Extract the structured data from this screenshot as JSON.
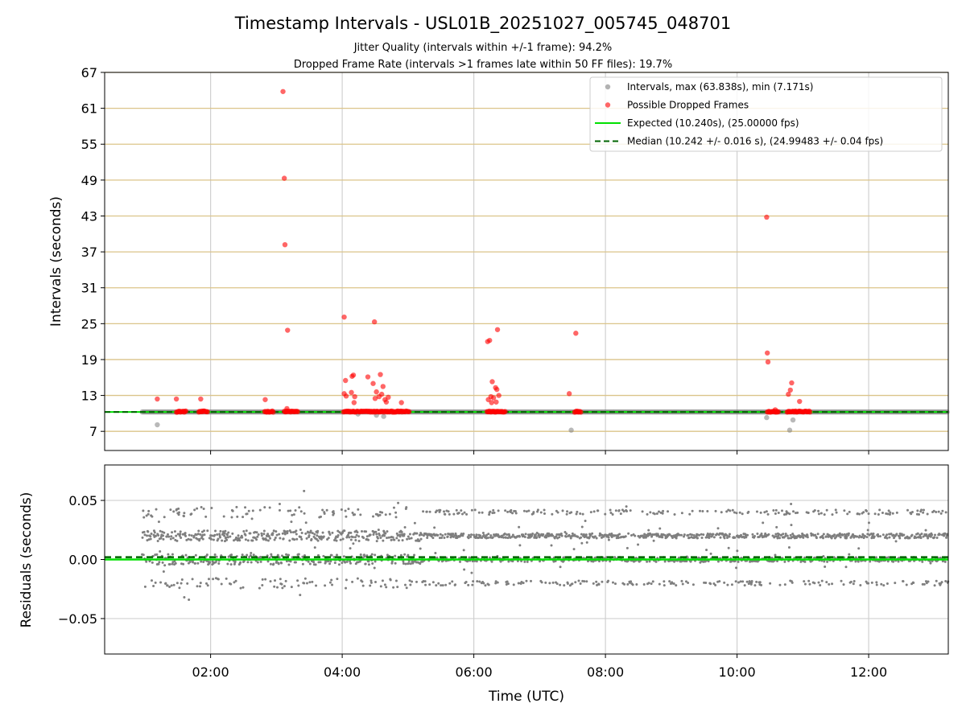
{
  "chart_data": {
    "type": "scatter",
    "title": "Timestamp Intervals - USL01B_20251027_005745_048701",
    "subtitle_lines": [
      "Jitter Quality (intervals within +/-1 frame): 94.2%",
      "Dropped Frame Rate (intervals >1 frames late within 50 FF files): 19.7%"
    ],
    "top_panel": {
      "ylabel": "Intervals (seconds)",
      "ylim": [
        3.8,
        67
      ],
      "yticks": [
        7,
        13,
        19,
        25,
        31,
        37,
        43,
        49,
        55,
        61,
        67
      ],
      "expected_interval": 10.24,
      "median_interval": 10.242,
      "intervals_max": 63.838,
      "intervals_min": 7.171,
      "legend": [
        {
          "label": "Intervals, max (63.838s), min (7.171s)",
          "kind": "dot",
          "color": "#7f7f7f"
        },
        {
          "label": "Possible Dropped Frames",
          "kind": "dot",
          "color": "#ff0000"
        },
        {
          "label": "Expected (10.240s), (25.00000 fps)",
          "kind": "line",
          "color": "#00e000"
        },
        {
          "label": "Median (10.242 +/- 0.016 s), (24.99483 +/- 0.04 fps)",
          "kind": "dash",
          "color": "#006400"
        }
      ],
      "dropped_frames": [
        {
          "t": 1.19,
          "y": 12.4
        },
        {
          "t": 1.48,
          "y": 12.4
        },
        {
          "t": 1.85,
          "y": 12.4
        },
        {
          "t": 2.83,
          "y": 12.3
        },
        {
          "t": 3.1,
          "y": 63.8
        },
        {
          "t": 3.12,
          "y": 49.3
        },
        {
          "t": 3.13,
          "y": 38.2
        },
        {
          "t": 3.17,
          "y": 23.9
        },
        {
          "t": 3.16,
          "y": 10.8
        },
        {
          "t": 4.03,
          "y": 26.1
        },
        {
          "t": 4.05,
          "y": 15.5
        },
        {
          "t": 4.03,
          "y": 13.3
        },
        {
          "t": 4.06,
          "y": 12.9
        },
        {
          "t": 4.15,
          "y": 16.2
        },
        {
          "t": 4.17,
          "y": 16.4
        },
        {
          "t": 4.14,
          "y": 13.5
        },
        {
          "t": 4.18,
          "y": 11.8
        },
        {
          "t": 4.19,
          "y": 12.8
        },
        {
          "t": 4.39,
          "y": 16.1
        },
        {
          "t": 4.47,
          "y": 15.0
        },
        {
          "t": 4.49,
          "y": 25.3
        },
        {
          "t": 4.52,
          "y": 13.6
        },
        {
          "t": 4.5,
          "y": 12.5
        },
        {
          "t": 4.56,
          "y": 12.8
        },
        {
          "t": 4.58,
          "y": 16.5
        },
        {
          "t": 4.6,
          "y": 13.2
        },
        {
          "t": 4.62,
          "y": 14.5
        },
        {
          "t": 4.65,
          "y": 12.3
        },
        {
          "t": 4.67,
          "y": 11.9
        },
        {
          "t": 4.7,
          "y": 12.7
        },
        {
          "t": 4.9,
          "y": 11.8
        },
        {
          "t": 6.21,
          "y": 22.0
        },
        {
          "t": 6.24,
          "y": 22.2
        },
        {
          "t": 6.22,
          "y": 12.3
        },
        {
          "t": 6.26,
          "y": 12.8
        },
        {
          "t": 6.28,
          "y": 15.3
        },
        {
          "t": 6.27,
          "y": 11.8
        },
        {
          "t": 6.3,
          "y": 12.6
        },
        {
          "t": 6.33,
          "y": 14.3
        },
        {
          "t": 6.35,
          "y": 14.0
        },
        {
          "t": 6.36,
          "y": 24.0
        },
        {
          "t": 6.34,
          "y": 11.9
        },
        {
          "t": 6.38,
          "y": 13.0
        },
        {
          "t": 7.45,
          "y": 13.3
        },
        {
          "t": 7.55,
          "y": 23.4
        },
        {
          "t": 10.45,
          "y": 42.8
        },
        {
          "t": 10.46,
          "y": 20.1
        },
        {
          "t": 10.47,
          "y": 18.6
        },
        {
          "t": 10.58,
          "y": 10.6
        },
        {
          "t": 10.78,
          "y": 13.2
        },
        {
          "t": 10.81,
          "y": 13.9
        },
        {
          "t": 10.83,
          "y": 15.1
        },
        {
          "t": 10.95,
          "y": 12.0
        }
      ],
      "dropped_clusters": [
        {
          "t0": 1.48,
          "t1": 1.63
        },
        {
          "t0": 1.82,
          "t1": 1.96
        },
        {
          "t0": 2.82,
          "t1": 2.96
        },
        {
          "t0": 3.12,
          "t1": 3.33
        },
        {
          "t0": 4.02,
          "t1": 5.02
        },
        {
          "t0": 6.2,
          "t1": 6.48
        },
        {
          "t0": 7.53,
          "t1": 7.63
        },
        {
          "t0": 10.46,
          "t1": 10.63
        },
        {
          "t0": 10.76,
          "t1": 11.12
        }
      ],
      "low_intervals": [
        {
          "t": 1.19,
          "y": 8.1
        },
        {
          "t": 4.24,
          "y": 9.9
        },
        {
          "t": 4.52,
          "y": 9.7
        },
        {
          "t": 4.63,
          "y": 9.5
        },
        {
          "t": 7.48,
          "y": 7.2
        },
        {
          "t": 10.45,
          "y": 9.3
        },
        {
          "t": 10.8,
          "y": 7.2
        },
        {
          "t": 10.85,
          "y": 8.9
        }
      ]
    },
    "bottom_panel": {
      "ylabel": "Residuals (seconds)",
      "ylim": [
        -0.08,
        0.08
      ],
      "yticks": [
        -0.05,
        0.0,
        0.05
      ],
      "ytick_labels": [
        "−0.05",
        "0.00",
        "0.05"
      ],
      "expected_residual": 0.0,
      "median_residual": 0.002,
      "residual_levels": [
        0.0,
        0.02,
        0.04,
        -0.02
      ],
      "residual_outliers": [
        {
          "t": 3.42,
          "y": 0.058
        },
        {
          "t": 1.6,
          "y": -0.032
        },
        {
          "t": 1.67,
          "y": -0.034
        },
        {
          "t": 3.05,
          "y": 0.047
        },
        {
          "t": 3.36,
          "y": -0.03
        },
        {
          "t": 10.82,
          "y": 0.047
        }
      ]
    },
    "x": {
      "xlabel": "Time (UTC)",
      "xlim_hours": [
        0.39,
        13.21
      ],
      "xticks_hours": [
        2,
        4,
        6,
        8,
        10,
        12
      ],
      "xtick_labels": [
        "02:00",
        "04:00",
        "06:00",
        "08:00",
        "10:00",
        "12:00"
      ],
      "data_start_hours": 0.96
    }
  }
}
